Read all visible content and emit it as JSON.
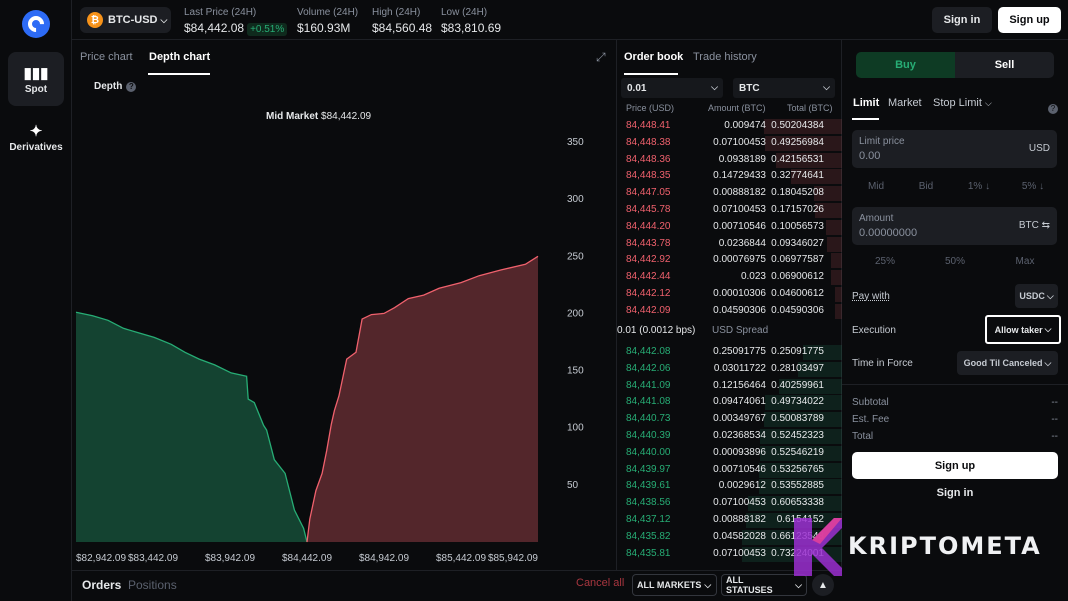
{
  "rail": {
    "spot_label": "Spot",
    "derivatives_label": "Derivatives"
  },
  "header": {
    "pair": "BTC-USD",
    "last_price_label": "Last Price (24H)",
    "last_price": "$84,442.08",
    "change": "+0.51%",
    "volume_label": "Volume (24H)",
    "volume": "$160.93M",
    "high_label": "High (24H)",
    "high": "$84,560.48",
    "low_label": "Low (24H)",
    "low": "$83,810.69",
    "sign_in": "Sign in",
    "sign_up": "Sign up"
  },
  "chart_panel": {
    "tab_price": "Price chart",
    "tab_depth": "Depth chart",
    "depth_label": "Depth",
    "mid_market_label": "Mid Market",
    "mid_market_value": "$84,442.09"
  },
  "chart_data": {
    "type": "area",
    "title": "",
    "xlabel": "",
    "ylabel": "",
    "x_ticks": [
      "$82,942.09",
      "$83,442.09",
      "$83,942.09",
      "$84,442.09",
      "$84,942.09",
      "$85,442.09",
      "$85,942.09"
    ],
    "y_ticks": [
      50,
      100,
      150,
      200,
      250,
      300,
      350
    ],
    "xlim": [
      82942.09,
      85942.09
    ],
    "ylim": [
      0,
      350
    ],
    "grid": false,
    "series": [
      {
        "name": "",
        "color": "#27ad75",
        "x": [
          82942.09,
          83050,
          83150,
          83250,
          83350,
          83450,
          83560,
          83650,
          83742,
          83843,
          83950,
          84050,
          84060,
          84100,
          84160,
          84180,
          84230,
          84300,
          84360,
          84420,
          84442.08
        ],
        "y": [
          201,
          198,
          194,
          187,
          183,
          179,
          173,
          166,
          160,
          155,
          148,
          145,
          125,
          122,
          102,
          98,
          72,
          60,
          28,
          12,
          0
        ]
      },
      {
        "name": "",
        "color": "#f0616d",
        "x": [
          84442.09,
          84460,
          84500,
          84540,
          84570,
          84600,
          84620,
          84650,
          84700,
          84760,
          84800,
          84860,
          84942,
          85010,
          85100,
          85200,
          85300,
          85442,
          85560,
          85700,
          85860,
          85942.09
        ],
        "y": [
          0,
          20,
          45,
          60,
          80,
          103,
          115,
          128,
          160,
          166,
          195,
          199,
          200,
          205,
          213,
          216,
          222,
          227,
          233,
          238,
          243,
          250
        ]
      }
    ]
  },
  "order_book": {
    "tab_order_book": "Order book",
    "tab_trade_history": "Trade history",
    "increment": "0.01",
    "unit": "BTC",
    "col_price": "Price (USD)",
    "col_amount": "Amount (BTC)",
    "col_total": "Total (BTC)",
    "asks": [
      {
        "price": "84,448.41",
        "amount": "0.009474",
        "total": "0.50204384",
        "depth": 0.78
      },
      {
        "price": "84,448.38",
        "amount": "0.07100453",
        "total": "0.49256984",
        "depth": 0.77
      },
      {
        "price": "84,448.36",
        "amount": "0.0938189",
        "total": "0.42156531",
        "depth": 0.66
      },
      {
        "price": "84,448.35",
        "amount": "0.14729433",
        "total": "0.32774641",
        "depth": 0.51
      },
      {
        "price": "84,447.05",
        "amount": "0.00888182",
        "total": "0.18045208",
        "depth": 0.28
      },
      {
        "price": "84,445.78",
        "amount": "0.07100453",
        "total": "0.17157026",
        "depth": 0.27
      },
      {
        "price": "84,444.20",
        "amount": "0.00710546",
        "total": "0.10056573",
        "depth": 0.16
      },
      {
        "price": "84,443.78",
        "amount": "0.0236844",
        "total": "0.09346027",
        "depth": 0.15
      },
      {
        "price": "84,442.92",
        "amount": "0.00076975",
        "total": "0.06977587",
        "depth": 0.11
      },
      {
        "price": "84,442.44",
        "amount": "0.023",
        "total": "0.06900612",
        "depth": 0.11
      },
      {
        "price": "84,442.12",
        "amount": "0.00010306",
        "total": "0.04600612",
        "depth": 0.07
      },
      {
        "price": "84,442.09",
        "amount": "0.04590306",
        "total": "0.04590306",
        "depth": 0.07
      }
    ],
    "spread_value": "0.01 (0.0012 bps)",
    "spread_label": "USD Spread",
    "bids": [
      {
        "price": "84,442.08",
        "amount": "0.25091775",
        "total": "0.25091775",
        "depth": 0.39
      },
      {
        "price": "84,442.06",
        "amount": "0.03011722",
        "total": "0.28103497",
        "depth": 0.44
      },
      {
        "price": "84,441.09",
        "amount": "0.12156464",
        "total": "0.40259961",
        "depth": 0.63
      },
      {
        "price": "84,441.08",
        "amount": "0.09474061",
        "total": "0.49734022",
        "depth": 0.77
      },
      {
        "price": "84,440.73",
        "amount": "0.00349767",
        "total": "0.50083789",
        "depth": 0.78
      },
      {
        "price": "84,440.39",
        "amount": "0.02368534",
        "total": "0.52452323",
        "depth": 0.82
      },
      {
        "price": "84,440.00",
        "amount": "0.00093896",
        "total": "0.52546219",
        "depth": 0.82
      },
      {
        "price": "84,439.97",
        "amount": "0.00710546",
        "total": "0.53256765",
        "depth": 0.83
      },
      {
        "price": "84,439.61",
        "amount": "0.0029612",
        "total": "0.53552885",
        "depth": 0.83
      },
      {
        "price": "84,438.56",
        "amount": "0.07100453",
        "total": "0.60653338",
        "depth": 0.94
      },
      {
        "price": "84,437.12",
        "amount": "0.00888182",
        "total": "0.6154152",
        "depth": 0.96
      },
      {
        "price": "84,435.82",
        "amount": "0.04582028",
        "total": "0.66123548",
        "depth": 1.0
      },
      {
        "price": "84,435.81",
        "amount": "0.07100453",
        "total": "0.73224001",
        "depth": 1.0
      }
    ]
  },
  "trade": {
    "buy": "Buy",
    "sell": "Sell",
    "tab_limit": "Limit",
    "tab_market": "Market",
    "tab_stop_limit": "Stop Limit",
    "limit_price_label": "Limit price",
    "limit_price_value": "0.00",
    "limit_price_unit": "USD",
    "price_chips": [
      "Mid",
      "Bid",
      "1% ↓",
      "5% ↓"
    ],
    "amount_label": "Amount",
    "amount_value": "0.00000000",
    "amount_unit": "BTC",
    "amount_chips": [
      "25%",
      "50%",
      "Max"
    ],
    "pay_with_label": "Pay with",
    "pay_with_value": "USDC",
    "execution_label": "Execution",
    "execution_value": "Allow taker",
    "tif_label": "Time in Force",
    "tif_value": "Good Til Canceled",
    "subtotal_label": "Subtotal",
    "subtotal_value": "--",
    "fee_label": "Est. Fee",
    "fee_value": "--",
    "total_label": "Total",
    "total_value": "--",
    "sign_up": "Sign up",
    "sign_in": "Sign in"
  },
  "bottom": {
    "orders": "Orders",
    "positions": "Positions",
    "cancel_all": "Cancel all",
    "all_markets": "ALL MARKETS",
    "all_statuses": "ALL STATUSES"
  },
  "watermark": {
    "text": "KRIPTOMETA"
  },
  "colors": {
    "bid": "#27ad75",
    "ask": "#f0616d",
    "background": "#0a0b0d",
    "brand": "#2d6bf5"
  }
}
